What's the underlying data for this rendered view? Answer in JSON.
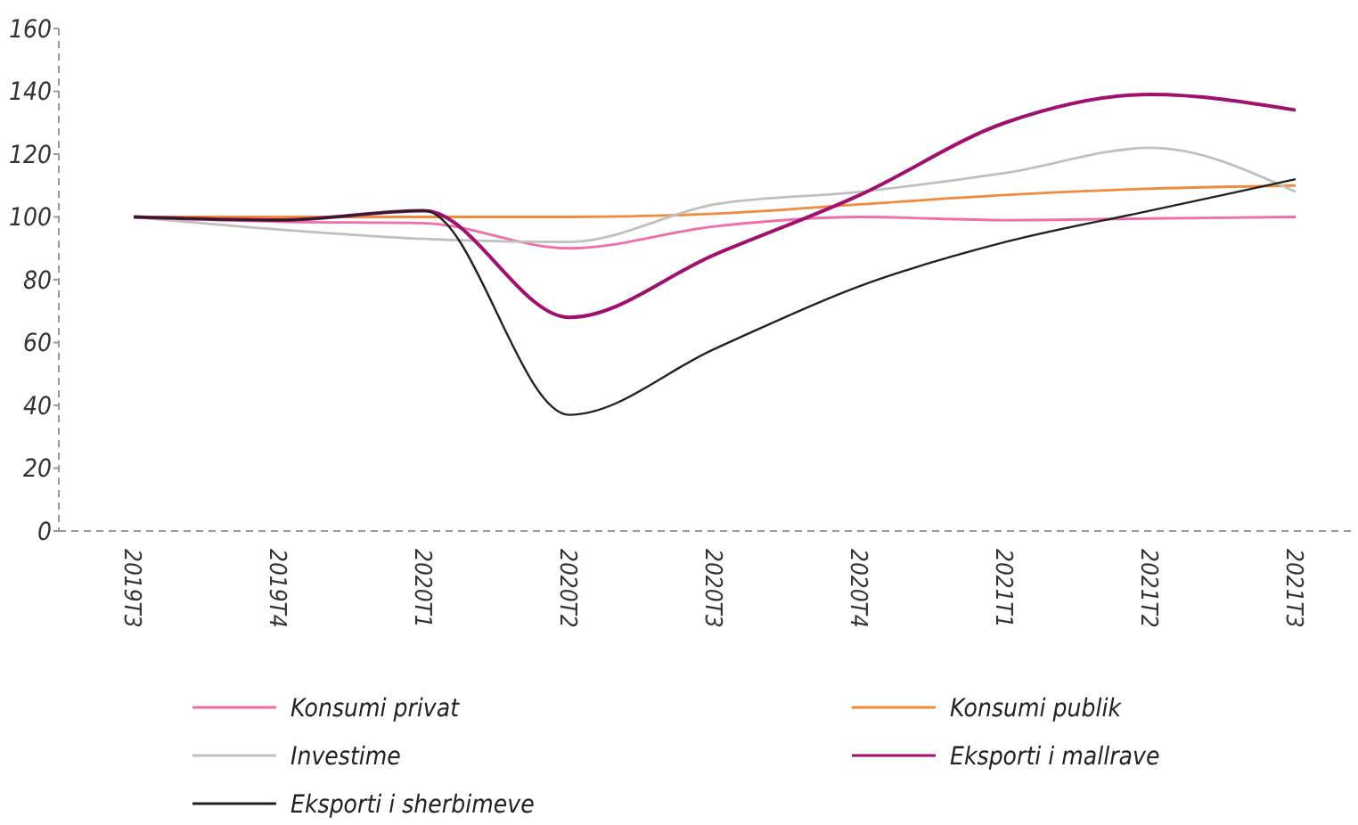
{
  "chart_data": {
    "type": "line",
    "categories": [
      "2019T3",
      "2019T4",
      "2020T1",
      "2020T2",
      "2020T3",
      "2020T4",
      "2021T1",
      "2021T2",
      "2021T3"
    ],
    "series": [
      {
        "name": "Konsumi privat",
        "color": "#f06ea9",
        "values": [
          100,
          98.5,
          98,
          90,
          97,
          100,
          99,
          99.5,
          100
        ]
      },
      {
        "name": "Konsumi publik",
        "color": "#f08a3c",
        "values": [
          100,
          100,
          100,
          100,
          101,
          104,
          107,
          109,
          110
        ]
      },
      {
        "name": "Investime",
        "color": "#c0c0c0",
        "values": [
          100,
          96,
          93,
          92,
          104,
          108,
          114,
          122,
          108
        ]
      },
      {
        "name": "Eksporti i mallrave",
        "color": "#a0106e",
        "values": [
          100,
          99,
          102,
          68,
          88,
          107,
          130,
          139,
          134
        ]
      },
      {
        "name": "Eksporti i sherbimeve",
        "color": "#222222",
        "values": [
          100,
          99,
          102,
          37,
          58,
          78,
          92,
          102,
          112
        ]
      }
    ],
    "ylim": [
      0,
      160
    ],
    "yticks": [
      0,
      20,
      40,
      60,
      80,
      100,
      120,
      140,
      160
    ],
    "grid": false,
    "legend": "bottom",
    "marker": "none",
    "line_style": "solid"
  }
}
